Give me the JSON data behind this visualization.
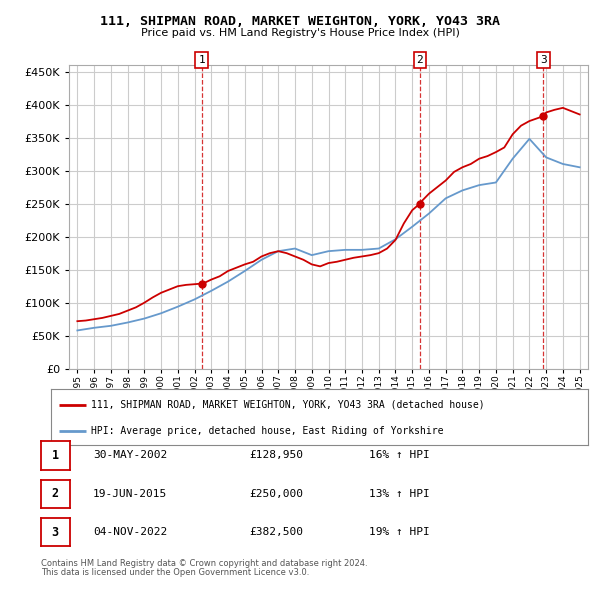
{
  "title": "111, SHIPMAN ROAD, MARKET WEIGHTON, YORK, YO43 3RA",
  "subtitle": "Price paid vs. HM Land Registry's House Price Index (HPI)",
  "legend_line1": "111, SHIPMAN ROAD, MARKET WEIGHTON, YORK, YO43 3RA (detached house)",
  "legend_line2": "HPI: Average price, detached house, East Riding of Yorkshire",
  "footer1": "Contains HM Land Registry data © Crown copyright and database right 2024.",
  "footer2": "This data is licensed under the Open Government Licence v3.0.",
  "transactions": [
    {
      "label": "1",
      "date": "30-MAY-2002",
      "price": "128,950",
      "hpi_pct": "16%",
      "direction": "↑"
    },
    {
      "label": "2",
      "date": "19-JUN-2015",
      "price": "250,000",
      "hpi_pct": "13%",
      "direction": "↑"
    },
    {
      "label": "3",
      "date": "04-NOV-2022",
      "price": "382,500",
      "hpi_pct": "19%",
      "direction": "↑"
    }
  ],
  "transaction_years": [
    2002.42,
    2015.46,
    2022.84
  ],
  "transaction_prices": [
    128950,
    250000,
    382500
  ],
  "ylim": [
    0,
    460000
  ],
  "yticks": [
    0,
    50000,
    100000,
    150000,
    200000,
    250000,
    300000,
    350000,
    400000,
    450000
  ],
  "background_color": "#ffffff",
  "plot_bg_color": "#ffffff",
  "grid_color": "#cccccc",
  "red_color": "#cc0000",
  "blue_color": "#6699cc",
  "hpi_years": [
    1995,
    1996,
    1997,
    1998,
    1999,
    2000,
    2001,
    2002,
    2003,
    2004,
    2005,
    2006,
    2007,
    2008,
    2009,
    2010,
    2011,
    2012,
    2013,
    2014,
    2015,
    2016,
    2017,
    2018,
    2019,
    2020,
    2021,
    2022,
    2023,
    2024,
    2025
  ],
  "hpi_values": [
    58000,
    62000,
    65000,
    70000,
    76000,
    84000,
    94000,
    105000,
    118000,
    132000,
    148000,
    165000,
    178000,
    182000,
    172000,
    178000,
    180000,
    180000,
    182000,
    196000,
    215000,
    235000,
    258000,
    270000,
    278000,
    282000,
    318000,
    348000,
    320000,
    310000,
    305000
  ],
  "price_paid_years": [
    1995.0,
    1995.5,
    1996.0,
    1996.5,
    1997.0,
    1997.5,
    1998.0,
    1998.5,
    1999.0,
    1999.5,
    2000.0,
    2000.5,
    2001.0,
    2001.5,
    2002.0,
    2002.42,
    2002.5,
    2003.0,
    2003.5,
    2004.0,
    2004.5,
    2005.0,
    2005.5,
    2006.0,
    2006.5,
    2007.0,
    2007.5,
    2008.0,
    2008.5,
    2009.0,
    2009.5,
    2010.0,
    2010.5,
    2011.0,
    2011.5,
    2012.0,
    2012.5,
    2013.0,
    2013.5,
    2014.0,
    2014.5,
    2015.0,
    2015.46,
    2015.5,
    2016.0,
    2016.5,
    2017.0,
    2017.5,
    2018.0,
    2018.5,
    2019.0,
    2019.5,
    2020.0,
    2020.5,
    2021.0,
    2021.5,
    2022.0,
    2022.84,
    2023.0,
    2023.5,
    2024.0,
    2024.5,
    2025.0
  ],
  "price_paid_values": [
    72000,
    73000,
    75000,
    77000,
    80000,
    83000,
    88000,
    93000,
    100000,
    108000,
    115000,
    120000,
    125000,
    127000,
    128000,
    128950,
    129000,
    135000,
    140000,
    148000,
    153000,
    158000,
    162000,
    170000,
    175000,
    178000,
    175000,
    170000,
    165000,
    158000,
    155000,
    160000,
    162000,
    165000,
    168000,
    170000,
    172000,
    175000,
    182000,
    195000,
    220000,
    240000,
    250000,
    252000,
    265000,
    275000,
    285000,
    298000,
    305000,
    310000,
    318000,
    322000,
    328000,
    335000,
    355000,
    368000,
    375000,
    382500,
    388000,
    392000,
    395000,
    390000,
    385000
  ]
}
